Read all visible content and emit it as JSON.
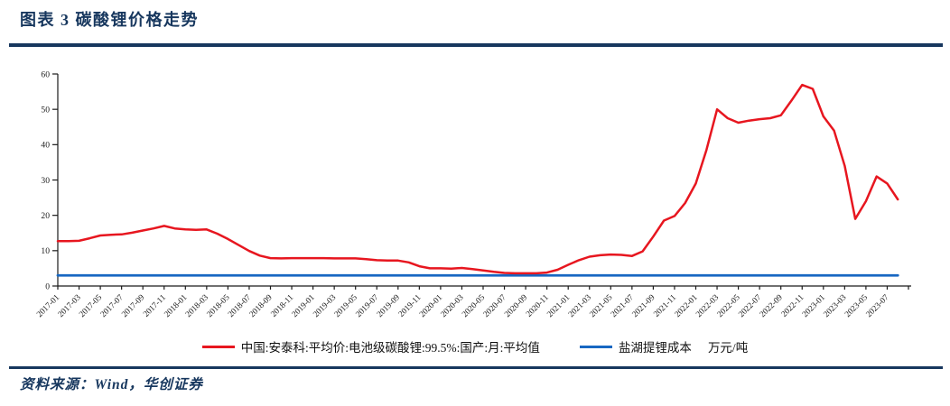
{
  "header": {
    "title": "图表 3  碳酸锂价格走势"
  },
  "footer": {
    "source": "资料来源：Wind，华创证券"
  },
  "colors": {
    "accent_navy": "#17375e",
    "series_red": "#e7161f",
    "series_blue": "#1767c2",
    "axis": "#1a1a1a"
  },
  "chart_data": {
    "type": "line",
    "title": "碳酸锂价格走势",
    "xlabel": "",
    "ylabel": "",
    "unit_label": "万元/吨",
    "grid": false,
    "legend_position": "bottom",
    "ylim": [
      0,
      60
    ],
    "y_ticks": [
      0,
      10,
      20,
      30,
      40,
      50,
      60
    ],
    "x_range": [
      "2017-01",
      "2023-08"
    ],
    "x_months_count": 80,
    "x_tick_step_months": 2,
    "x_tick_labels": [
      "2017-01",
      "2017-03",
      "2017-05",
      "2017-07",
      "2017-09",
      "2017-11",
      "2018-01",
      "2018-03",
      "2018-05",
      "2018-07",
      "2018-09",
      "2018-11",
      "2019-01",
      "2019-03",
      "2019-05",
      "2019-07",
      "2019-09",
      "2019-11",
      "2020-01",
      "2020-03",
      "2020-05",
      "2020-07",
      "2020-09",
      "2020-11",
      "2021-01",
      "2021-03",
      "2021-05",
      "2021-07",
      "2021-09",
      "2021-11",
      "2022-01",
      "2022-03",
      "2022-05",
      "2022-07",
      "2022-09",
      "2022-11",
      "2023-01",
      "2023-03",
      "2023-05",
      "2023-07"
    ],
    "series": [
      {
        "name": "中国:安泰科:平均价:电池级碳酸锂:99.5%:国产:月:平均值",
        "color": "#e7161f",
        "values": [
          12.7,
          12.7,
          12.8,
          13.5,
          14.3,
          14.5,
          14.6,
          15.1,
          15.7,
          16.3,
          17.0,
          16.3,
          16.0,
          15.9,
          16.0,
          14.8,
          13.3,
          11.6,
          9.9,
          8.6,
          7.9,
          7.8,
          7.9,
          7.9,
          7.9,
          7.9,
          7.8,
          7.8,
          7.8,
          7.6,
          7.3,
          7.2,
          7.2,
          6.7,
          5.6,
          5.0,
          5.0,
          4.9,
          5.1,
          4.8,
          4.4,
          4.0,
          3.7,
          3.6,
          3.6,
          3.6,
          3.8,
          4.6,
          6.0,
          7.3,
          8.3,
          8.7,
          8.9,
          8.8,
          8.5,
          9.8,
          14.0,
          18.5,
          19.8,
          23.5,
          29.0,
          38.5,
          50.0,
          47.5,
          46.2,
          46.8,
          47.2,
          47.5,
          48.3,
          52.5,
          56.9,
          55.8,
          48.0,
          44.0,
          34.0,
          19.0,
          24.0,
          31.0,
          29.0,
          24.5
        ]
      },
      {
        "name": "盐湖提锂成本",
        "color": "#1767c2",
        "constant_value": 3
      }
    ]
  }
}
